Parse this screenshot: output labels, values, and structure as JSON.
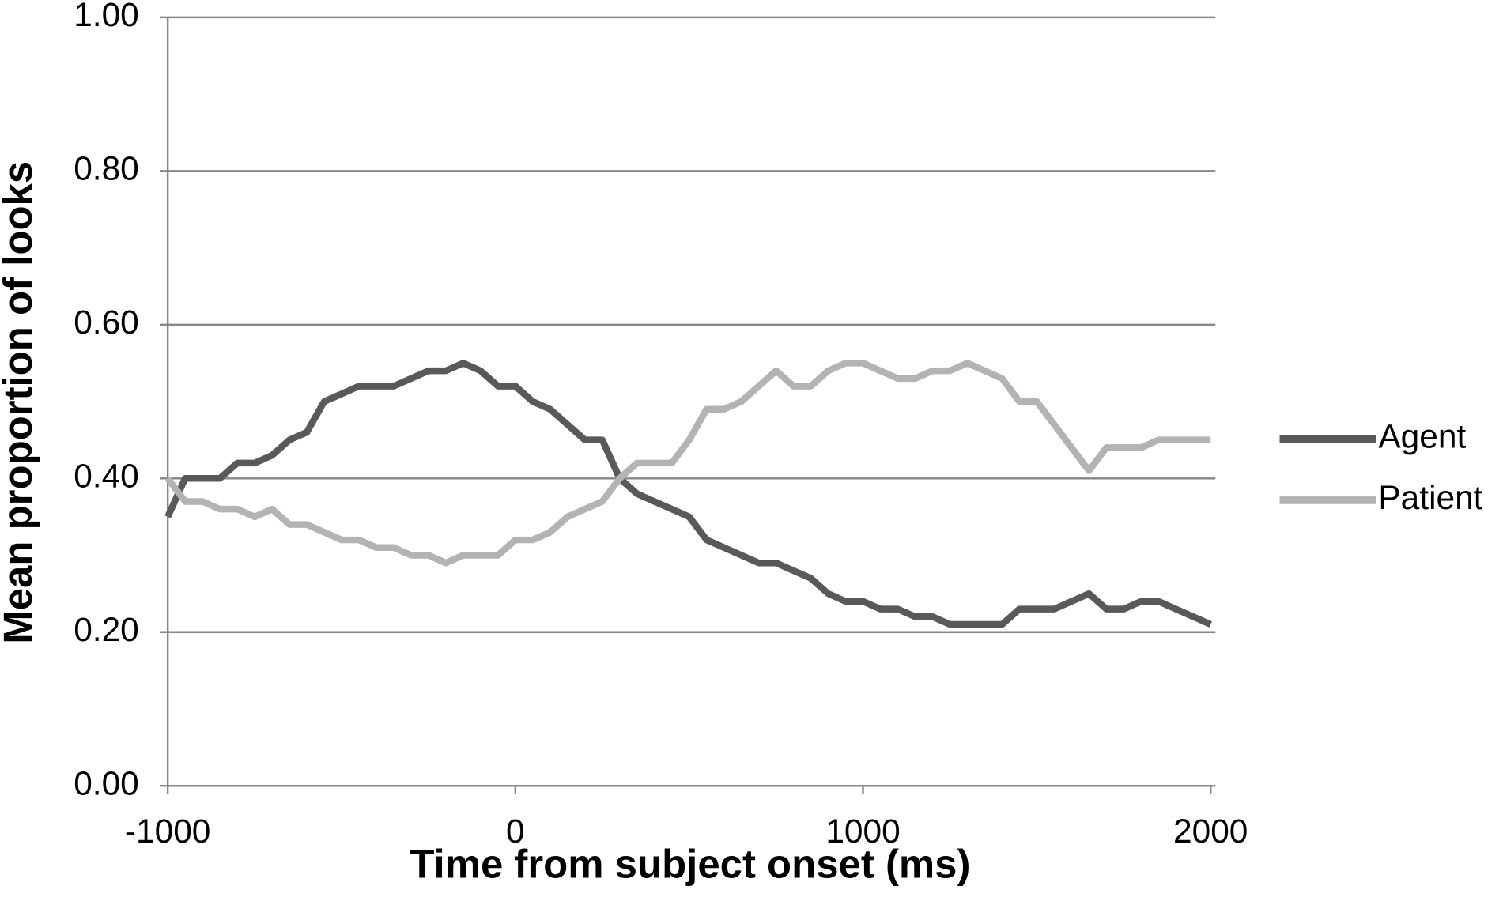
{
  "chart_data": {
    "type": "line",
    "x_label": "Time from subject onset  (ms)",
    "y_label": "Mean proportion of looks",
    "x": [
      -1000,
      -950,
      -900,
      -850,
      -800,
      -750,
      -700,
      -650,
      -600,
      -550,
      -500,
      -450,
      -400,
      -350,
      -300,
      -250,
      -200,
      -150,
      -100,
      -50,
      0,
      50,
      100,
      150,
      200,
      250,
      300,
      350,
      400,
      450,
      500,
      550,
      600,
      650,
      700,
      750,
      800,
      850,
      900,
      950,
      1000,
      1050,
      1100,
      1150,
      1200,
      1250,
      1300,
      1350,
      1400,
      1450,
      1500,
      1550,
      1600,
      1650,
      1700,
      1750,
      1800,
      1850,
      1900,
      1950,
      2000
    ],
    "series": [
      {
        "name": "Agent",
        "color": "#595959",
        "values": [
          0.35,
          0.4,
          0.4,
          0.4,
          0.42,
          0.42,
          0.43,
          0.45,
          0.46,
          0.5,
          0.51,
          0.52,
          0.52,
          0.52,
          0.53,
          0.54,
          0.54,
          0.55,
          0.54,
          0.52,
          0.52,
          0.5,
          0.49,
          0.47,
          0.45,
          0.45,
          0.4,
          0.38,
          0.37,
          0.36,
          0.35,
          0.32,
          0.31,
          0.3,
          0.29,
          0.29,
          0.28,
          0.27,
          0.25,
          0.24,
          0.24,
          0.23,
          0.23,
          0.22,
          0.22,
          0.21,
          0.21,
          0.21,
          0.21,
          0.23,
          0.23,
          0.23,
          0.24,
          0.25,
          0.23,
          0.23,
          0.24,
          0.24,
          0.23,
          0.22,
          0.21
        ]
      },
      {
        "name": "Patient",
        "color": "#b3b3b3",
        "values": [
          0.4,
          0.37,
          0.37,
          0.36,
          0.36,
          0.35,
          0.36,
          0.34,
          0.34,
          0.33,
          0.32,
          0.32,
          0.31,
          0.31,
          0.3,
          0.3,
          0.29,
          0.3,
          0.3,
          0.3,
          0.32,
          0.32,
          0.33,
          0.35,
          0.36,
          0.37,
          0.4,
          0.42,
          0.42,
          0.42,
          0.45,
          0.49,
          0.49,
          0.5,
          0.52,
          0.54,
          0.52,
          0.52,
          0.54,
          0.55,
          0.55,
          0.54,
          0.53,
          0.53,
          0.54,
          0.54,
          0.55,
          0.54,
          0.53,
          0.5,
          0.5,
          0.47,
          0.44,
          0.41,
          0.44,
          0.44,
          0.44,
          0.45,
          0.45,
          0.45,
          0.45
        ]
      }
    ],
    "xlim": [
      -1000,
      2000
    ],
    "xticks": [
      -1000,
      0,
      1000,
      2000
    ],
    "ylim": [
      0,
      1
    ],
    "yticks": [
      {
        "value": 0,
        "label": "0.00"
      },
      {
        "value": 0.2,
        "label": "0.20"
      },
      {
        "value": 0.4,
        "label": "0.40"
      },
      {
        "value": 0.6,
        "label": "0.60"
      },
      {
        "value": 0.8,
        "label": "0.80"
      },
      {
        "value": 1,
        "label": "1.00"
      }
    ],
    "grid": true,
    "legend": "right"
  }
}
